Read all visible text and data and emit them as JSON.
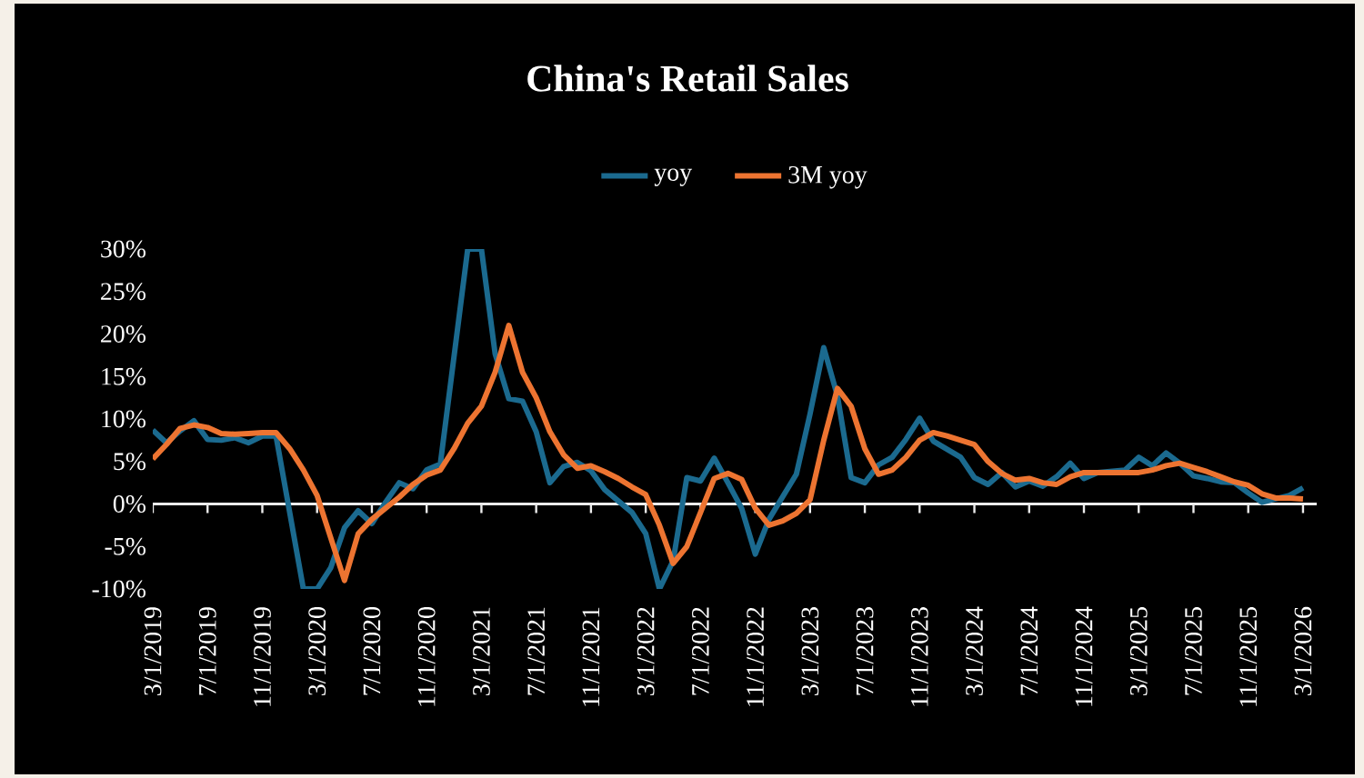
{
  "chart_data": {
    "type": "line",
    "title": "China's Retail  Sales",
    "legend": "top",
    "xlim": [
      "2019-03-01",
      "2026-04-01"
    ],
    "xticks": [
      {
        "value": "2019-03-01",
        "label": "3/1/2019"
      },
      {
        "value": "2019-07-01",
        "label": "7/1/2019"
      },
      {
        "value": "2019-11-01",
        "label": "11/1/2019"
      },
      {
        "value": "2020-03-01",
        "label": "3/1/2020"
      },
      {
        "value": "2020-07-01",
        "label": "7/1/2020"
      },
      {
        "value": "2020-11-01",
        "label": "11/1/2020"
      },
      {
        "value": "2021-03-01",
        "label": "3/1/2021"
      },
      {
        "value": "2021-07-01",
        "label": "7/1/2021"
      },
      {
        "value": "2021-11-01",
        "label": "11/1/2021"
      },
      {
        "value": "2022-03-01",
        "label": "3/1/2022"
      },
      {
        "value": "2022-07-01",
        "label": "7/1/2022"
      },
      {
        "value": "2022-11-01",
        "label": "11/1/2022"
      },
      {
        "value": "2023-03-01",
        "label": "3/1/2023"
      },
      {
        "value": "2023-07-01",
        "label": "7/1/2023"
      },
      {
        "value": "2023-11-01",
        "label": "11/1/2023"
      },
      {
        "value": "2024-03-01",
        "label": "3/1/2024"
      },
      {
        "value": "2024-07-01",
        "label": "7/1/2024"
      },
      {
        "value": "2024-11-01",
        "label": "11/1/2024"
      },
      {
        "value": "2025-03-01",
        "label": "3/1/2025"
      },
      {
        "value": "2025-07-01",
        "label": "7/1/2025"
      },
      {
        "value": "2025-11-01",
        "label": "11/1/2025"
      },
      {
        "value": "2026-03-01",
        "label": "3/1/2026"
      }
    ],
    "ylim": [
      -10,
      30
    ],
    "yticks": [
      {
        "value": -10,
        "label": "-10%"
      },
      {
        "value": -5,
        "label": "-5%"
      },
      {
        "value": 0,
        "label": "0%"
      },
      {
        "value": 5,
        "label": "5%"
      },
      {
        "value": 10,
        "label": "10%"
      },
      {
        "value": 15,
        "label": "15%"
      },
      {
        "value": 20,
        "label": "20%"
      },
      {
        "value": 25,
        "label": "25%"
      },
      {
        "value": 30,
        "label": "30%"
      }
    ],
    "series": [
      {
        "name": "yoy",
        "color": "#1b6a8f",
        "x": [
          "2019-03",
          "2019-04",
          "2019-05",
          "2019-06",
          "2019-07",
          "2019-08",
          "2019-09",
          "2019-10",
          "2019-11",
          "2019-12",
          "2020-02",
          "2020-03",
          "2020-04",
          "2020-05",
          "2020-06",
          "2020-07",
          "2020-08",
          "2020-09",
          "2020-10",
          "2020-11",
          "2020-12",
          "2021-02",
          "2021-03",
          "2021-04",
          "2021-05",
          "2021-06",
          "2021-07",
          "2021-08",
          "2021-09",
          "2021-10",
          "2021-11",
          "2021-12",
          "2022-02",
          "2022-03",
          "2022-04",
          "2022-05",
          "2022-06",
          "2022-07",
          "2022-08",
          "2022-09",
          "2022-10",
          "2022-11",
          "2022-12",
          "2023-02",
          "2023-03",
          "2023-04",
          "2023-05",
          "2023-06",
          "2023-07",
          "2023-08",
          "2023-09",
          "2023-10",
          "2023-11",
          "2023-12",
          "2024-02",
          "2024-03",
          "2024-04",
          "2024-05",
          "2024-06",
          "2024-07",
          "2024-08",
          "2024-09",
          "2024-10",
          "2024-11",
          "2024-12",
          "2025-02",
          "2025-03",
          "2025-04",
          "2025-05",
          "2025-06",
          "2025-07",
          "2025-08",
          "2025-09",
          "2025-10",
          "2025-11",
          "2025-12",
          "2026-02",
          "2026-03"
        ],
        "values": [
          8.7,
          7.2,
          8.6,
          9.8,
          7.6,
          7.5,
          7.8,
          7.2,
          8.0,
          8.0,
          -10,
          -10,
          -7.5,
          -2.8,
          -0.8,
          -2.3,
          0.2,
          2.5,
          1.8,
          4.0,
          4.7,
          30,
          30,
          17.7,
          12.4,
          12.1,
          8.5,
          2.5,
          4.4,
          4.9,
          3.9,
          1.7,
          -1.0,
          -3.5,
          -10,
          -6.7,
          3.1,
          2.7,
          5.4,
          2.5,
          -0.5,
          -5.9,
          -1.8,
          3.5,
          10.6,
          18.4,
          12.7,
          3.1,
          2.5,
          4.6,
          5.5,
          7.6,
          10.1,
          7.4,
          5.5,
          3.1,
          2.3,
          3.7,
          2.0,
          2.7,
          2.1,
          3.2,
          4.8,
          3.0,
          3.7,
          4.0,
          5.5,
          4.5,
          6.0,
          4.8,
          3.3,
          3.0,
          2.6,
          2.5,
          1.3,
          0.2,
          1.0,
          1.9
        ]
      },
      {
        "name": "3M yoy",
        "color": "#ed7431",
        "x": [
          "2019-03",
          "2019-04",
          "2019-05",
          "2019-06",
          "2019-07",
          "2019-08",
          "2019-09",
          "2019-10",
          "2019-11",
          "2019-12",
          "2020-01",
          "2020-02",
          "2020-03",
          "2020-04",
          "2020-05",
          "2020-06",
          "2020-07",
          "2020-08",
          "2020-09",
          "2020-10",
          "2020-11",
          "2020-12",
          "2021-01",
          "2021-02",
          "2021-03",
          "2021-04",
          "2021-05",
          "2021-06",
          "2021-07",
          "2021-08",
          "2021-09",
          "2021-10",
          "2021-11",
          "2021-12",
          "2022-01",
          "2022-02",
          "2022-03",
          "2022-04",
          "2022-05",
          "2022-06",
          "2022-07",
          "2022-08",
          "2022-09",
          "2022-10",
          "2022-11",
          "2022-12",
          "2023-01",
          "2023-02",
          "2023-03",
          "2023-04",
          "2023-05",
          "2023-06",
          "2023-07",
          "2023-08",
          "2023-09",
          "2023-10",
          "2023-11",
          "2023-12",
          "2024-01",
          "2024-02",
          "2024-03",
          "2024-04",
          "2024-05",
          "2024-06",
          "2024-07",
          "2024-08",
          "2024-09",
          "2024-10",
          "2024-11",
          "2024-12",
          "2025-01",
          "2025-02",
          "2025-03",
          "2025-04",
          "2025-05",
          "2025-06",
          "2025-07",
          "2025-08",
          "2025-09",
          "2025-10",
          "2025-11",
          "2025-12",
          "2026-01",
          "2026-02",
          "2026-03"
        ],
        "values": [
          5.3,
          7.0,
          8.9,
          9.3,
          9.0,
          8.3,
          8.2,
          8.3,
          8.4,
          8.4,
          6.5,
          4.0,
          1.0,
          -4.0,
          -9.0,
          -3.5,
          -1.8,
          -0.5,
          0.8,
          2.3,
          3.4,
          4.0,
          6.5,
          9.5,
          11.5,
          15.5,
          21.0,
          15.5,
          12.5,
          8.5,
          5.8,
          4.2,
          4.5,
          3.8,
          3.0,
          2.0,
          1.1,
          -2.5,
          -7.0,
          -5.0,
          -1.0,
          3.0,
          3.6,
          2.9,
          -0.5,
          -2.5,
          -2.0,
          -1.1,
          0.5,
          7.5,
          13.6,
          11.5,
          6.5,
          3.5,
          4.0,
          5.5,
          7.5,
          8.4,
          8.0,
          7.5,
          7.0,
          5.0,
          3.6,
          2.8,
          3.0,
          2.5,
          2.3,
          3.2,
          3.7,
          3.7,
          3.7,
          3.7,
          3.7,
          4.0,
          4.5,
          4.8,
          4.3,
          3.8,
          3.2,
          2.6,
          2.2,
          1.2,
          0.7,
          0.7,
          0.6
        ]
      }
    ]
  }
}
